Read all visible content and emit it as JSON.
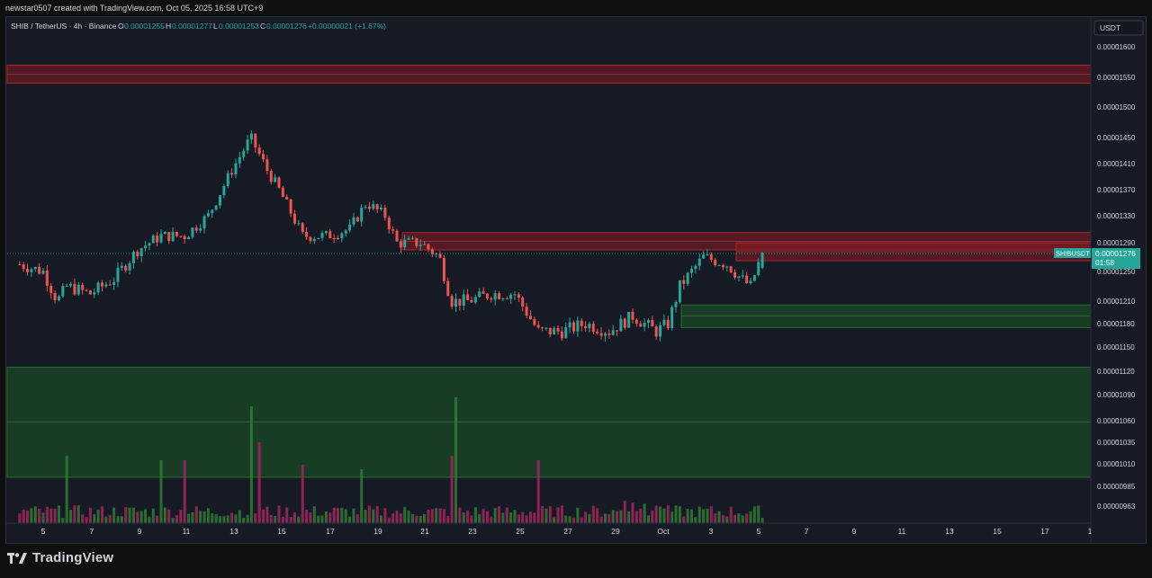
{
  "header": {
    "attribution": "newstar0507 created with TradingView.com, Oct 05, 2025 16:58 UTC+9"
  },
  "legend": {
    "symbol": "SHIB / TetherUS · 4h · Binance",
    "o_label": "O",
    "o_value": "0.00001255",
    "h_label": "H",
    "h_value": "0.00001277",
    "l_label": "L",
    "l_value": "0.00001253",
    "c_label": "C",
    "c_value": "0.00001276",
    "change": "+0.00000021 (+1.67%)"
  },
  "axis": {
    "currency": "USDT",
    "price_ticks": [
      "0.00001600",
      "0.00001550",
      "0.00001500",
      "0.00001450",
      "0.00001410",
      "0.00001370",
      "0.00001330",
      "0.00001290",
      "0.00001250",
      "0.00001210",
      "0.00001180",
      "0.00001150",
      "0.00001120",
      "0.00001090",
      "0.00001060",
      "0.00001035",
      "0.00001010",
      "0.00000985",
      "0.00000963"
    ],
    "time_ticks": [
      "5",
      "7",
      "9",
      "11",
      "13",
      "15",
      "17",
      "19",
      "21",
      "23",
      "25",
      "27",
      "29",
      "Oct",
      "3",
      "5",
      "7",
      "9",
      "11",
      "13",
      "15",
      "17",
      "1"
    ]
  },
  "price_label": {
    "symbol": "SHIBUSDT",
    "price": "0.00001276",
    "countdown": "01:58"
  },
  "brand": {
    "name": "TradingView"
  },
  "colors": {
    "background": "#161a25",
    "up": "#26a69a",
    "down": "#ef5350",
    "volume_up": "#2e7d32",
    "volume_down": "#a3265e",
    "supply_zone": "#8b1a22",
    "demand_zone": "#1e5a24",
    "label_bg": "#26a69a"
  },
  "chart_data": {
    "type": "candlestick",
    "title": "SHIB / TetherUS · 4h · Binance",
    "xlabel": "",
    "ylabel": "",
    "y_unit": "USDT",
    "ylim": [
      9.5e-06,
      1.63e-05
    ],
    "last_price": 1.276e-05,
    "x_range_days": [
      "Sep 4",
      "Oct 18"
    ],
    "close_path_key_points": [
      {
        "date": "Sep 4",
        "close": 1.26e-05
      },
      {
        "date": "Sep 5",
        "close": 1.25e-05
      },
      {
        "date": "Sep 5.6",
        "close": 1.21e-05
      },
      {
        "date": "Sep 6",
        "close": 1.23e-05
      },
      {
        "date": "Sep 7",
        "close": 1.22e-05
      },
      {
        "date": "Sep 8",
        "close": 1.24e-05
      },
      {
        "date": "Sep 9",
        "close": 1.28e-05
      },
      {
        "date": "Sep 10",
        "close": 1.3e-05
      },
      {
        "date": "Sep 11",
        "close": 1.3e-05
      },
      {
        "date": "Sep 12",
        "close": 1.33e-05
      },
      {
        "date": "Sep 13",
        "close": 1.4e-05
      },
      {
        "date": "Sep 13.8",
        "close": 1.45e-05
      },
      {
        "date": "Sep 14.5",
        "close": 1.4e-05
      },
      {
        "date": "Sep 15",
        "close": 1.37e-05
      },
      {
        "date": "Sep 16",
        "close": 1.3e-05
      },
      {
        "date": "Sep 17",
        "close": 1.3e-05
      },
      {
        "date": "Sep 18",
        "close": 1.31e-05
      },
      {
        "date": "Sep 18.7",
        "close": 1.35e-05
      },
      {
        "date": "Sep 19.5",
        "close": 1.33e-05
      },
      {
        "date": "Sep 20",
        "close": 1.29e-05
      },
      {
        "date": "Sep 21",
        "close": 1.29e-05
      },
      {
        "date": "Sep 21.8",
        "close": 1.27e-05
      },
      {
        "date": "Sep 22.3",
        "close": 1.21e-05
      },
      {
        "date": "Sep 23",
        "close": 1.21e-05
      },
      {
        "date": "Sep 24",
        "close": 1.22e-05
      },
      {
        "date": "Sep 25",
        "close": 1.22e-05
      },
      {
        "date": "Sep 26",
        "close": 1.17e-05
      },
      {
        "date": "Sep 27",
        "close": 1.17e-05
      },
      {
        "date": "Sep 28",
        "close": 1.18e-05
      },
      {
        "date": "Sep 29",
        "close": 1.17e-05
      },
      {
        "date": "Sep 30",
        "close": 1.19e-05
      },
      {
        "date": "Oct 1",
        "close": 1.17e-05
      },
      {
        "date": "Oct 1.5",
        "close": 1.18e-05
      },
      {
        "date": "Oct 2",
        "close": 1.23e-05
      },
      {
        "date": "Oct 3",
        "close": 1.27e-05
      },
      {
        "date": "Oct 4",
        "close": 1.26e-05
      },
      {
        "date": "Oct 4.6",
        "close": 1.24e-05
      },
      {
        "date": "Oct 5",
        "close": 1.23e-05
      },
      {
        "date": "Oct 5.5",
        "close": 1.276e-05
      }
    ],
    "zones": [
      {
        "kind": "supply",
        "from": 1.54e-05,
        "to": 1.57e-05
      },
      {
        "kind": "supply",
        "from": 1.28e-05,
        "to": 1.305e-05
      },
      {
        "kind": "supply",
        "from": 1.265e-05,
        "to": 1.29e-05
      },
      {
        "kind": "demand",
        "from": 1.175e-05,
        "to": 1.205e-05
      },
      {
        "kind": "demand",
        "from": 9.95e-06,
        "to": 1.125e-05
      }
    ],
    "grid": false,
    "legend": "top-left"
  }
}
